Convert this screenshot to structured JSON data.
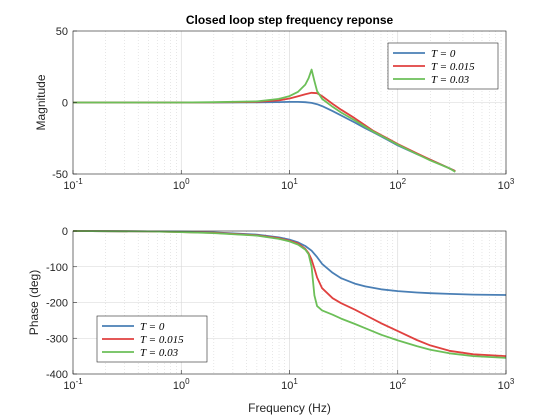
{
  "chart_data": [
    {
      "type": "line",
      "title": "Closed loop step frequency reponse",
      "xlabel": "",
      "ylabel": "Magnitude",
      "xscale": "log",
      "xlim": [
        0.1,
        1000
      ],
      "ylim": [
        -50,
        50
      ],
      "xticks": [
        "10^-1",
        "10^0",
        "10^1",
        "10^2",
        "10^3"
      ],
      "yticks": [
        50,
        0,
        -50
      ],
      "grid": true,
      "legend_position": "top-right",
      "series": [
        {
          "name": "T = 0",
          "color": "#4a7fb5",
          "x": [
            0.1,
            1,
            2,
            5,
            8,
            10,
            12,
            14,
            16,
            18,
            20,
            25,
            30,
            40,
            50,
            60,
            80,
            100,
            150,
            200,
            300,
            340
          ],
          "y": [
            0,
            0,
            0,
            0.1,
            0.3,
            0.4,
            0.4,
            0.2,
            -0.3,
            -1.2,
            -2.5,
            -6,
            -9,
            -14,
            -18,
            -21,
            -26,
            -30,
            -36,
            -40,
            -46,
            -48
          ]
        },
        {
          "name": "T = 0.015",
          "color": "#e0413f",
          "x": [
            0.1,
            1,
            2,
            5,
            8,
            10,
            12,
            14,
            16,
            18,
            20,
            25,
            30,
            40,
            50,
            60,
            80,
            100,
            150,
            200,
            300,
            340
          ],
          "y": [
            0,
            0,
            0.1,
            0.4,
            1.5,
            2.8,
            4.4,
            5.8,
            6.8,
            6.5,
            4.5,
            -1,
            -5,
            -11,
            -16,
            -20,
            -25,
            -29,
            -35.5,
            -40,
            -46,
            -48
          ]
        },
        {
          "name": "T = 0.03",
          "color": "#6cbf58",
          "x": [
            0.1,
            1,
            2,
            5,
            8,
            10,
            12,
            14,
            15,
            16,
            17,
            18,
            20,
            25,
            30,
            40,
            50,
            60,
            80,
            100,
            150,
            200,
            300,
            340
          ],
          "y": [
            0,
            0,
            0.2,
            0.8,
            2.5,
            4.5,
            7.5,
            12.5,
            17,
            23,
            15,
            8,
            2.5,
            -3,
            -7,
            -12.5,
            -17,
            -20.5,
            -25.5,
            -29.5,
            -36,
            -40.5,
            -46,
            -48.5
          ]
        }
      ]
    },
    {
      "type": "line",
      "title": "",
      "xlabel": "Frequency (Hz)",
      "ylabel": "Phase (deg)",
      "xscale": "log",
      "xlim": [
        0.1,
        1000
      ],
      "ylim": [
        -400,
        0
      ],
      "xticks": [
        "10^-1",
        "10^0",
        "10^1",
        "10^2",
        "10^3"
      ],
      "yticks": [
        0,
        -100,
        -200,
        -300,
        -400
      ],
      "grid": true,
      "legend_position": "bottom-left",
      "series": [
        {
          "name": "T = 0",
          "color": "#4a7fb5",
          "x": [
            0.1,
            0.5,
            1,
            2,
            5,
            8,
            10,
            12,
            14,
            16,
            18,
            20,
            25,
            30,
            40,
            50,
            70,
            100,
            150,
            200,
            300,
            500,
            1000
          ],
          "y": [
            0,
            -1,
            -2,
            -4,
            -10,
            -18,
            -24,
            -32,
            -42,
            -55,
            -73,
            -92,
            -117,
            -132,
            -147,
            -155,
            -163,
            -168,
            -172,
            -174,
            -176,
            -178,
            -179
          ]
        },
        {
          "name": "T = 0.015",
          "color": "#e0413f",
          "x": [
            0.1,
            0.5,
            1,
            2,
            5,
            8,
            10,
            12,
            14,
            15,
            16,
            17,
            18,
            20,
            25,
            30,
            40,
            50,
            70,
            100,
            150,
            200,
            300,
            500,
            1000
          ],
          "y": [
            0,
            -1,
            -3,
            -5,
            -12,
            -20,
            -27,
            -35,
            -50,
            -62,
            -80,
            -105,
            -130,
            -160,
            -188,
            -202,
            -220,
            -235,
            -258,
            -280,
            -305,
            -320,
            -335,
            -345,
            -350
          ]
        },
        {
          "name": "T = 0.03",
          "color": "#6cbf58",
          "x": [
            0.1,
            0.5,
            1,
            2,
            5,
            8,
            10,
            12,
            14,
            15,
            16,
            16.5,
            17,
            18,
            20,
            25,
            30,
            40,
            50,
            70,
            100,
            150,
            200,
            300,
            500,
            1000
          ],
          "y": [
            0,
            -1,
            -3,
            -6,
            -13,
            -22,
            -29,
            -38,
            -52,
            -65,
            -100,
            -140,
            -180,
            -210,
            -222,
            -234,
            -245,
            -260,
            -272,
            -290,
            -306,
            -322,
            -332,
            -342,
            -350,
            -355
          ]
        }
      ]
    }
  ]
}
